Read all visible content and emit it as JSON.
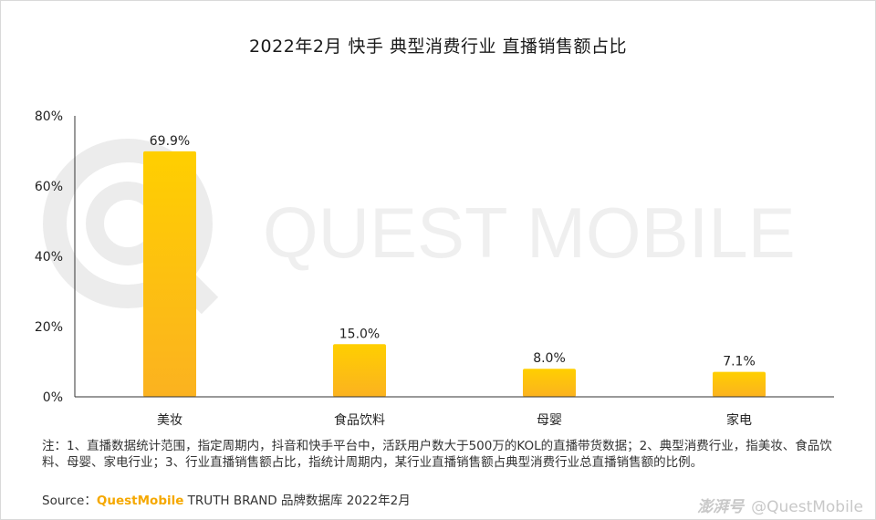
{
  "title": "2022年2月 快手 典型消费行业 直播销售额占比",
  "watermark": "QUEST MOBILE",
  "chart_data": {
    "type": "bar",
    "categories": [
      "美妆",
      "食品饮料",
      "母婴",
      "家电"
    ],
    "values": [
      69.9,
      15.0,
      8.0,
      7.1
    ],
    "value_labels": [
      "69.9%",
      "15.0%",
      "8.0%",
      "7.1%"
    ],
    "ylim": [
      0,
      80
    ],
    "yticks": [
      "0%",
      "20%",
      "40%",
      "60%",
      "80%"
    ],
    "ytick_values": [
      0,
      20,
      40,
      60,
      80
    ],
    "grid": false,
    "bar_colors": [
      "#ffcf00",
      "#fbb220"
    ]
  },
  "note": "注：1、直播数据统计范围，指定周期内，抖音和快手平台中，活跃用户数大于500万的KOL的直播带货数据；2、典型消费行业，指美妆、食品饮料、母婴、家电行业；3、行业直播销售额占比，指统计周期内，某行业直播销售额占典型消费行业总直播销售额的比例。",
  "source": {
    "prefix": "Source：",
    "brand": "QuestMobile",
    "suffix": " TRUTH BRAND 品牌数据库 2022年2月"
  },
  "credit": {
    "logo": "澎湃号",
    "handle": "@QuestMobile"
  }
}
